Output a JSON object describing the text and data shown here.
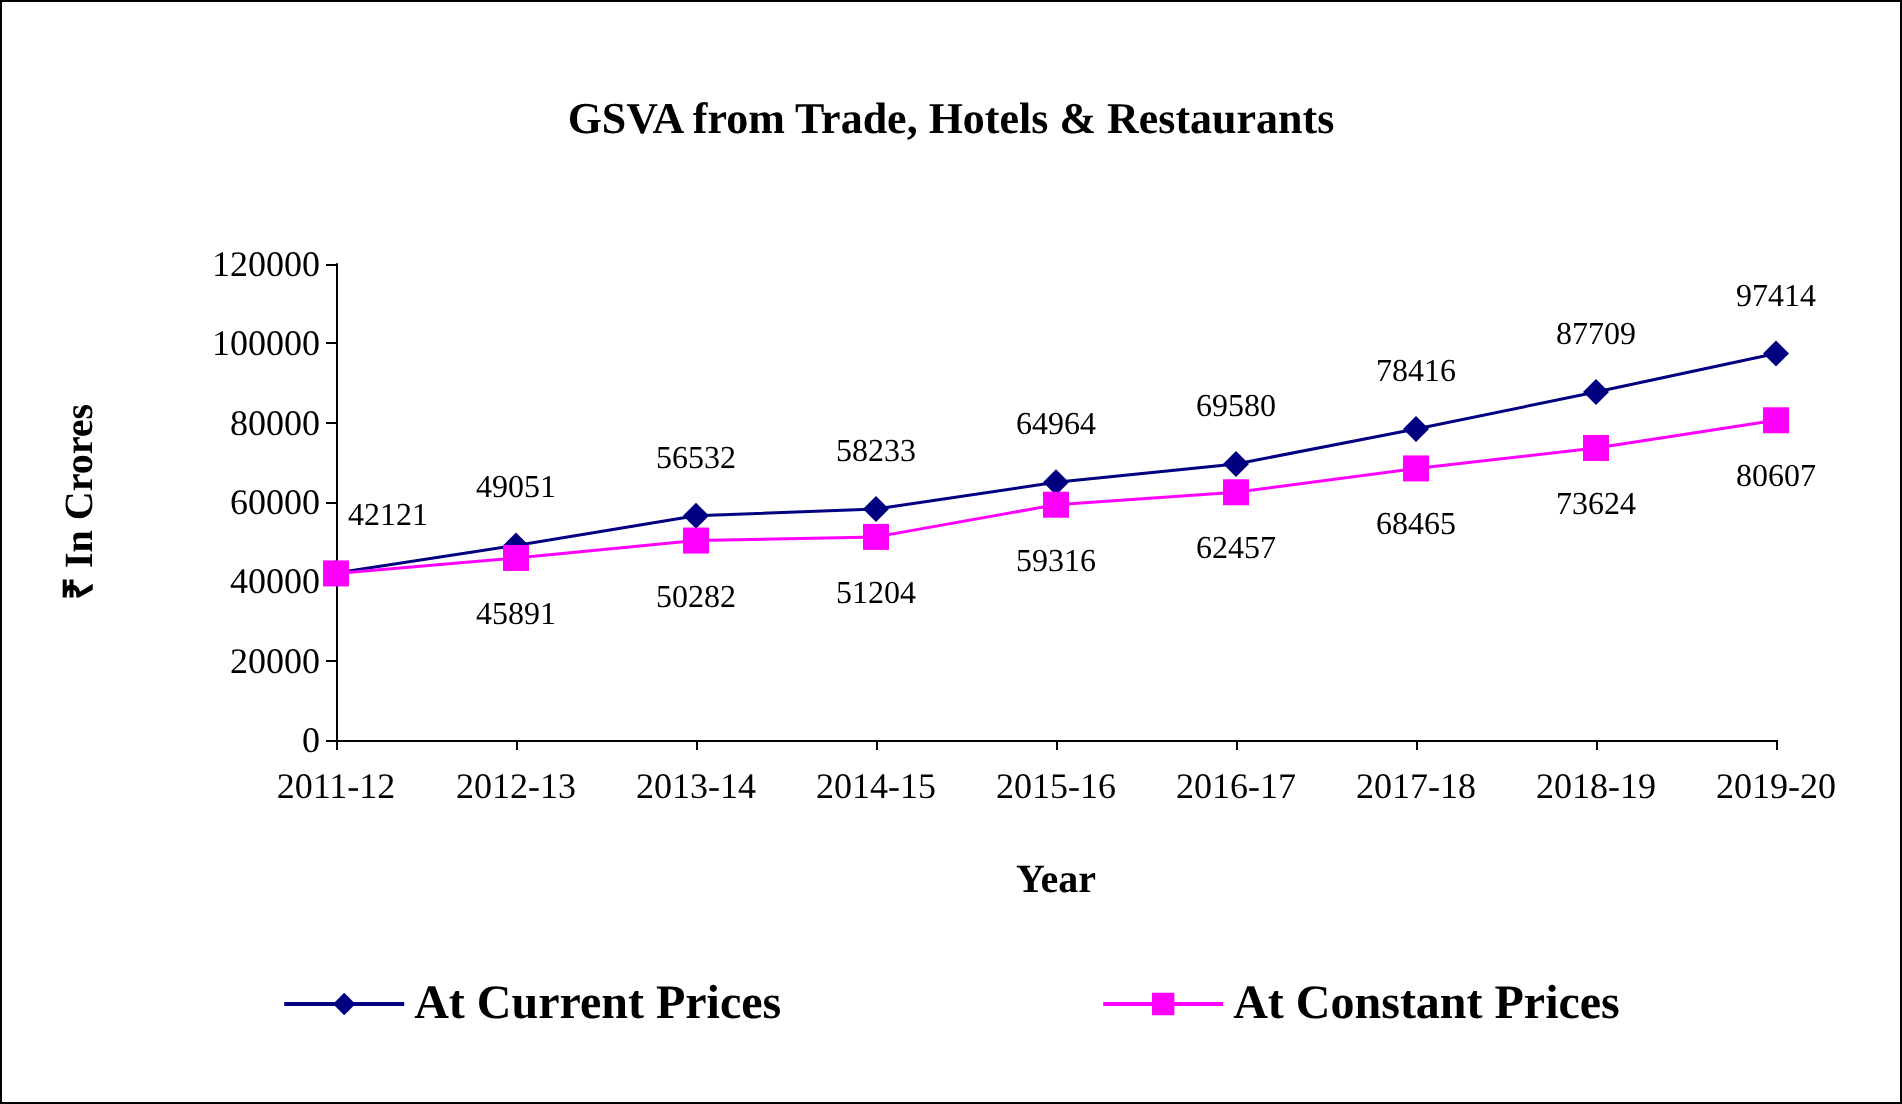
{
  "chart_data": {
    "type": "line",
    "title": "GSVA from Trade, Hotels & Restaurants",
    "xlabel": "Year",
    "ylabel": "₹ In Crores",
    "categories": [
      "2011-12",
      "2012-13",
      "2013-14",
      "2014-15",
      "2015-16",
      "2016-17",
      "2017-18",
      "2018-19",
      "2019-20"
    ],
    "series": [
      {
        "name": "At Current Prices",
        "color": "#000080",
        "marker": "diamond",
        "values": [
          42121,
          49051,
          56532,
          58233,
          64964,
          69580,
          78416,
          87709,
          97414
        ],
        "value_labels": [
          "42121",
          "49051",
          "56532",
          "58233",
          "64964",
          "69580",
          "78416",
          "87709",
          "97414"
        ]
      },
      {
        "name": "At Constant Prices",
        "color": "#ff00ff",
        "marker": "square",
        "values": [
          42000,
          45891,
          50282,
          51204,
          59316,
          62457,
          68465,
          73624,
          80607
        ],
        "value_labels": [
          null,
          "45891",
          "50282",
          "51204",
          "59316",
          "62457",
          "68465",
          "73624",
          "80607"
        ]
      }
    ],
    "ylim": [
      0,
      120000
    ],
    "yticks": [
      0,
      20000,
      40000,
      60000,
      80000,
      100000,
      120000
    ],
    "grid": false,
    "legend": "bottom"
  }
}
